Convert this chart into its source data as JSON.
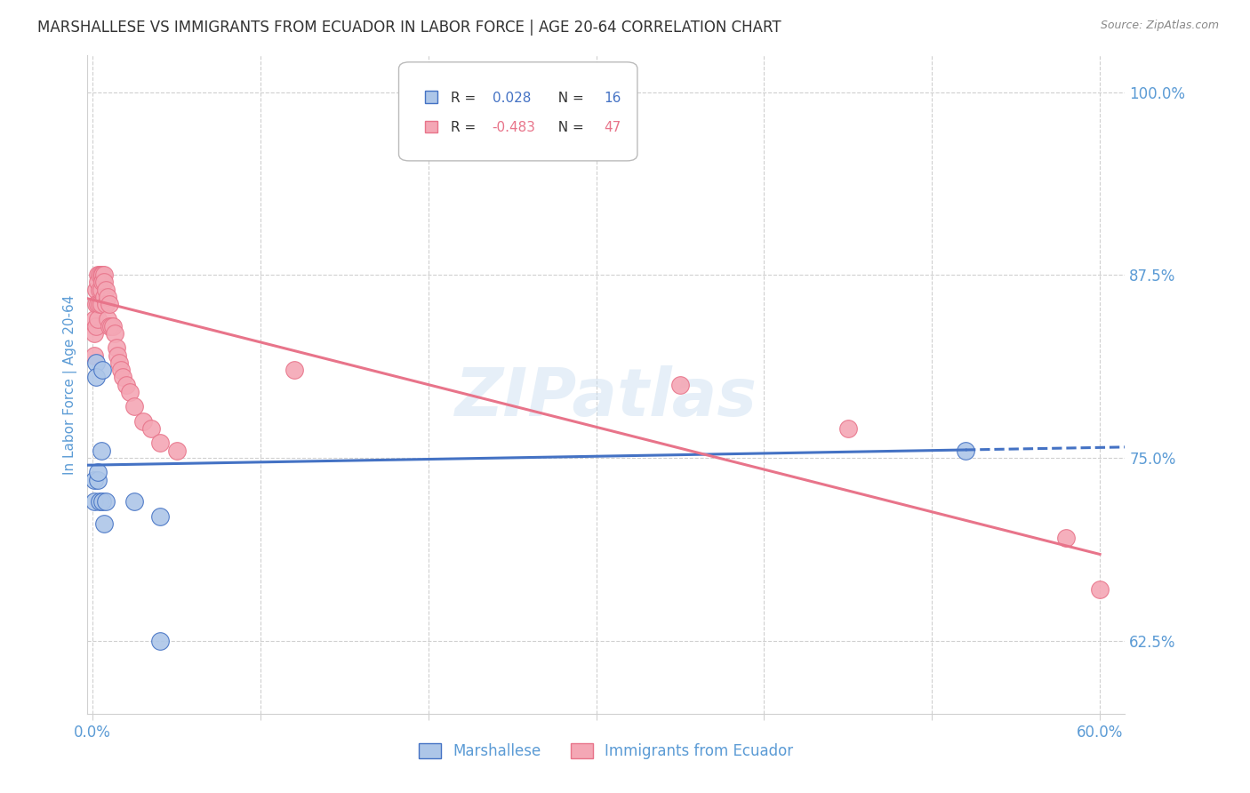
{
  "title": "MARSHALLESE VS IMMIGRANTS FROM ECUADOR IN LABOR FORCE | AGE 20-64 CORRELATION CHART",
  "source": "Source: ZipAtlas.com",
  "ylabel": "In Labor Force | Age 20-64",
  "xlim": [
    -0.003,
    0.615
  ],
  "ylim": [
    0.575,
    1.025
  ],
  "yticks": [
    0.625,
    0.75,
    0.875,
    1.0
  ],
  "ytick_labels": [
    "62.5%",
    "75.0%",
    "87.5%",
    "100.0%"
  ],
  "xticks": [
    0.0,
    0.1,
    0.2,
    0.3,
    0.4,
    0.5,
    0.6
  ],
  "xtick_labels": [
    "0.0%",
    "",
    "",
    "",
    "",
    "",
    "60.0%"
  ],
  "watermark": "ZIPatlas",
  "blue_r": 0.028,
  "blue_n": 16,
  "pink_r": -0.483,
  "pink_n": 47,
  "marshallese_x": [
    0.001,
    0.001,
    0.002,
    0.002,
    0.003,
    0.003,
    0.004,
    0.005,
    0.006,
    0.006,
    0.007,
    0.008,
    0.025,
    0.04,
    0.04,
    0.52
  ],
  "marshallese_y": [
    0.735,
    0.72,
    0.815,
    0.805,
    0.735,
    0.74,
    0.72,
    0.755,
    0.81,
    0.72,
    0.705,
    0.72,
    0.72,
    0.625,
    0.71,
    0.755
  ],
  "ecuador_x": [
    0.001,
    0.001,
    0.001,
    0.002,
    0.002,
    0.002,
    0.003,
    0.003,
    0.003,
    0.003,
    0.004,
    0.004,
    0.004,
    0.005,
    0.005,
    0.005,
    0.006,
    0.006,
    0.007,
    0.007,
    0.007,
    0.008,
    0.008,
    0.009,
    0.009,
    0.01,
    0.01,
    0.011,
    0.012,
    0.013,
    0.014,
    0.015,
    0.016,
    0.017,
    0.018,
    0.02,
    0.022,
    0.025,
    0.03,
    0.035,
    0.04,
    0.05,
    0.12,
    0.35,
    0.45,
    0.58,
    0.6
  ],
  "ecuador_y": [
    0.845,
    0.835,
    0.82,
    0.865,
    0.855,
    0.84,
    0.875,
    0.87,
    0.855,
    0.845,
    0.875,
    0.865,
    0.855,
    0.875,
    0.865,
    0.855,
    0.875,
    0.87,
    0.875,
    0.87,
    0.86,
    0.865,
    0.855,
    0.86,
    0.845,
    0.855,
    0.84,
    0.84,
    0.84,
    0.835,
    0.825,
    0.82,
    0.815,
    0.81,
    0.805,
    0.8,
    0.795,
    0.785,
    0.775,
    0.77,
    0.76,
    0.755,
    0.81,
    0.8,
    0.77,
    0.695,
    0.66
  ],
  "blue_line_color": "#4472c4",
  "pink_line_color": "#e8748a",
  "blue_scatter_color": "#adc6e8",
  "pink_scatter_color": "#f4a7b5",
  "background_color": "#ffffff",
  "grid_color": "#d0d0d0",
  "title_color": "#333333",
  "axis_label_color": "#5b9bd5",
  "tick_label_color": "#5b9bd5"
}
